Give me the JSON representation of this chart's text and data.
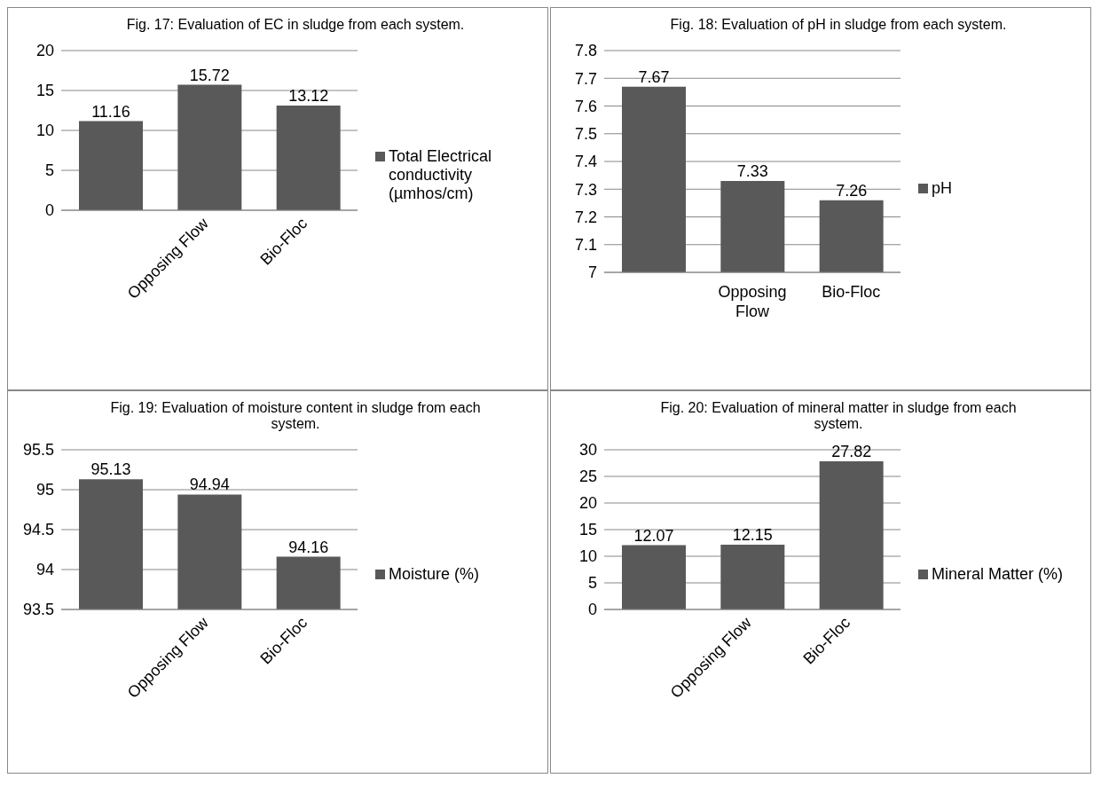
{
  "chart_data": [
    {
      "type": "bar",
      "title": "Fig. 17: Evaluation of EC in sludge from each system.",
      "categories": [
        null,
        "Opposing Flow",
        "Bio-Floc"
      ],
      "series": [
        {
          "name": "Total Electrical conductivity (µmhos/cm)",
          "color": "#595959",
          "values": [
            11.16,
            15.72,
            13.12
          ]
        }
      ],
      "ylim": [
        0,
        20
      ],
      "yticks": [
        0,
        5,
        10,
        15,
        20
      ],
      "grid": "y",
      "legend": "right",
      "data_labels": true
    },
    {
      "type": "bar",
      "title": "Fig. 18: Evaluation of pH in sludge from each system.",
      "categories": [
        null,
        "Opposing Flow",
        "Bio-Floc"
      ],
      "series": [
        {
          "name": "pH",
          "color": "#595959",
          "values": [
            7.67,
            7.33,
            7.26
          ]
        }
      ],
      "ylim": [
        7,
        7.8
      ],
      "yticks": [
        7,
        7.1,
        7.2,
        7.3,
        7.4,
        7.5,
        7.6,
        7.7,
        7.8
      ],
      "grid": "y",
      "legend": "right",
      "data_labels": true
    },
    {
      "type": "bar",
      "title": "Fig. 19: Evaluation of moisture content in sludge from each system.",
      "categories": [
        null,
        "Opposing Flow",
        "Bio-Floc"
      ],
      "series": [
        {
          "name": "Moisture (%)",
          "color": "#595959",
          "values": [
            95.13,
            94.94,
            94.16
          ]
        }
      ],
      "ylim": [
        93.5,
        95.5
      ],
      "yticks": [
        93.5,
        94,
        94.5,
        95,
        95.5
      ],
      "grid": "y",
      "legend": "right",
      "data_labels": true
    },
    {
      "type": "bar",
      "title": "Fig. 20: Evaluation of mineral matter in sludge from each system.",
      "categories": [
        null,
        "Opposing Flow",
        "Bio-Floc"
      ],
      "series": [
        {
          "name": "Mineral Matter (%)",
          "color": "#595959",
          "values": [
            12.07,
            12.15,
            27.82
          ]
        }
      ],
      "ylim": [
        0,
        30
      ],
      "yticks": [
        0,
        5,
        10,
        15,
        20,
        25,
        30
      ],
      "grid": "y",
      "legend": "right",
      "data_labels": true
    }
  ]
}
